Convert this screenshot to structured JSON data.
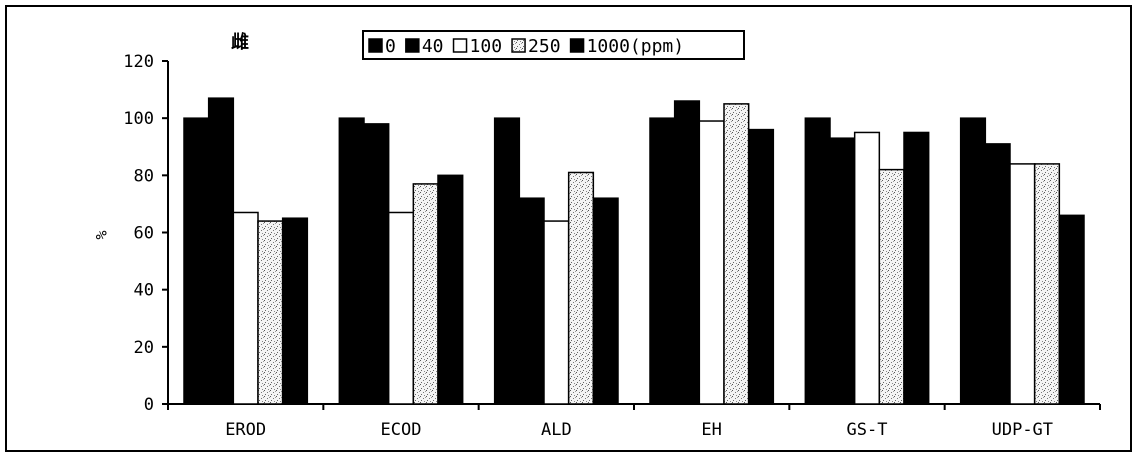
{
  "chart_data": {
    "type": "bar",
    "title": "雌",
    "ylabel": "%",
    "xlabel": "",
    "ylim": [
      0,
      120
    ],
    "yticks": [
      0,
      20,
      40,
      60,
      80,
      100,
      120
    ],
    "categories": [
      "EROD",
      "ECOD",
      "ALD",
      "EH",
      "GS-T",
      "UDP-GT"
    ],
    "legend_position": "top-center",
    "legend_suffix": "(ppm)",
    "grid": false,
    "series": [
      {
        "name": "0",
        "fill": "black",
        "values": [
          100,
          100,
          100,
          100,
          100,
          100
        ]
      },
      {
        "name": "40",
        "fill": "black",
        "values": [
          107,
          98,
          72,
          106,
          93,
          91
        ]
      },
      {
        "name": "100",
        "fill": "white",
        "values": [
          67,
          67,
          64,
          99,
          95,
          84
        ]
      },
      {
        "name": "250",
        "fill": "stipple",
        "values": [
          64,
          77,
          81,
          105,
          82,
          84
        ]
      },
      {
        "name": "1000",
        "fill": "black",
        "values": [
          65,
          80,
          72,
          96,
          95,
          66
        ]
      }
    ]
  }
}
